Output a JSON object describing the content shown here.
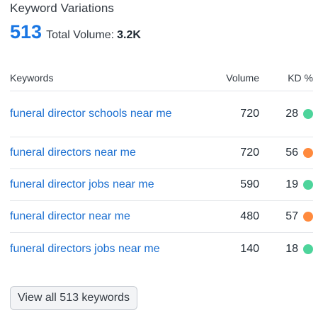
{
  "widget": {
    "title": "Keyword Variations",
    "count": "513",
    "total_label": "Total Volume:",
    "total_value": "3.2K"
  },
  "table": {
    "headers": {
      "keywords": "Keywords",
      "volume": "Volume",
      "kd": "KD %"
    },
    "rows": [
      {
        "keyword": "funeral director schools near me",
        "volume": "720",
        "kd": "28",
        "kd_color": "#4dd49b"
      },
      {
        "keyword": "funeral directors near me",
        "volume": "720",
        "kd": "56",
        "kd_color": "#ff8a3d"
      },
      {
        "keyword": "funeral director jobs near me",
        "volume": "590",
        "kd": "19",
        "kd_color": "#4dd49b"
      },
      {
        "keyword": "funeral director near me",
        "volume": "480",
        "kd": "57",
        "kd_color": "#ff8a3d"
      },
      {
        "keyword": "funeral directors jobs near me",
        "volume": "140",
        "kd": "18",
        "kd_color": "#4dd49b"
      }
    ]
  },
  "footer": {
    "view_all_label": "View all 513 keywords"
  },
  "colors": {
    "accent": "#1976e3",
    "link": "#1b6fd1",
    "kd_easy": "#4dd49b",
    "kd_difficult": "#ff8a3d"
  }
}
